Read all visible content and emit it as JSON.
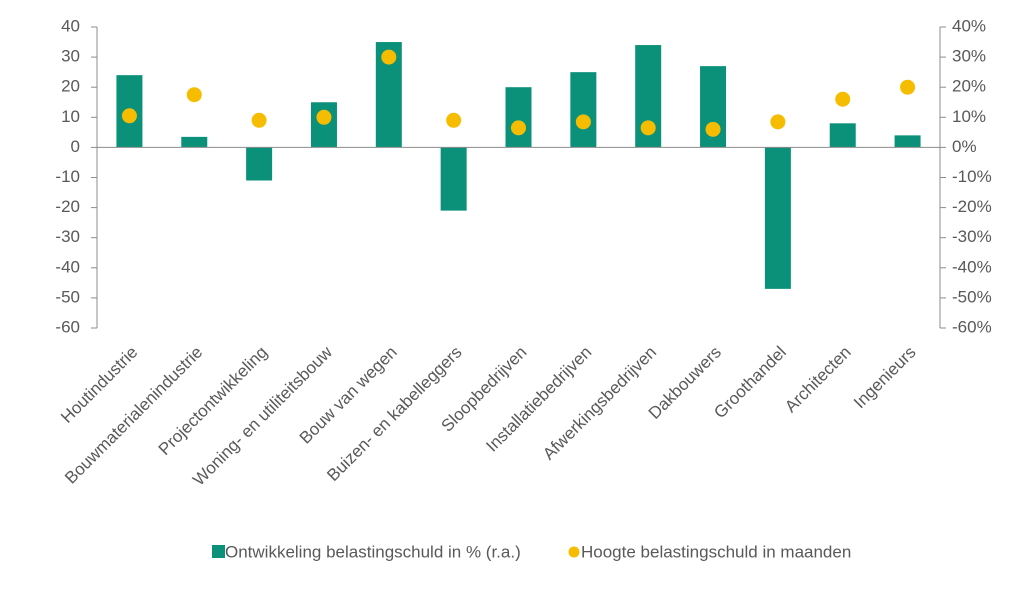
{
  "chart_data": {
    "type": "bar",
    "categories": [
      "Houtindustrie",
      "Bouwmaterialenindustrie",
      "Projectontwikkeling",
      "Woning- en utiliteitsbouw",
      "Bouw van wegen",
      "Buizen- en kabelleggers",
      "Sloopbedrijven",
      "Installatiebedrijven",
      "Afwerkingsbedrijven",
      "Dakbouwers",
      "Groothandel",
      "Architecten",
      "Ingenieurs"
    ],
    "series": [
      {
        "name": "Ontwikkeling belastingschuld in % (r.a.)",
        "type": "bar",
        "axis": "y2",
        "color": "#0b9179",
        "values": [
          24,
          3.5,
          -11,
          15,
          35,
          -21,
          20,
          25,
          34,
          27,
          -47,
          8,
          4
        ]
      },
      {
        "name": "Hoogte belastingschuld in maanden",
        "type": "scatter",
        "color": "#f6bd00",
        "values": [
          10.5,
          17.5,
          9,
          10,
          30,
          9,
          6.5,
          8.5,
          6.5,
          6,
          8.5,
          16,
          20
        ]
      }
    ],
    "ylim": [
      -60,
      40
    ],
    "yticks": [
      -60,
      -50,
      -40,
      -30,
      -20,
      -10,
      0,
      10,
      20,
      30,
      40
    ],
    "y2lim": [
      -60,
      40
    ],
    "y2ticks": [
      {
        "value": -60,
        "label": "-60%"
      },
      {
        "value": -50,
        "label": "-50%"
      },
      {
        "value": -40,
        "label": "-40%"
      },
      {
        "value": -30,
        "label": "-30%"
      },
      {
        "value": -20,
        "label": "-20%"
      },
      {
        "value": -10,
        "label": "-10%"
      },
      {
        "value": 0,
        "label": "0%"
      },
      {
        "value": 10,
        "label": "10%"
      },
      {
        "value": 20,
        "label": "20%"
      },
      {
        "value": 30,
        "label": "30%"
      },
      {
        "value": 40,
        "label": "40%"
      }
    ],
    "legend": "bottom"
  }
}
